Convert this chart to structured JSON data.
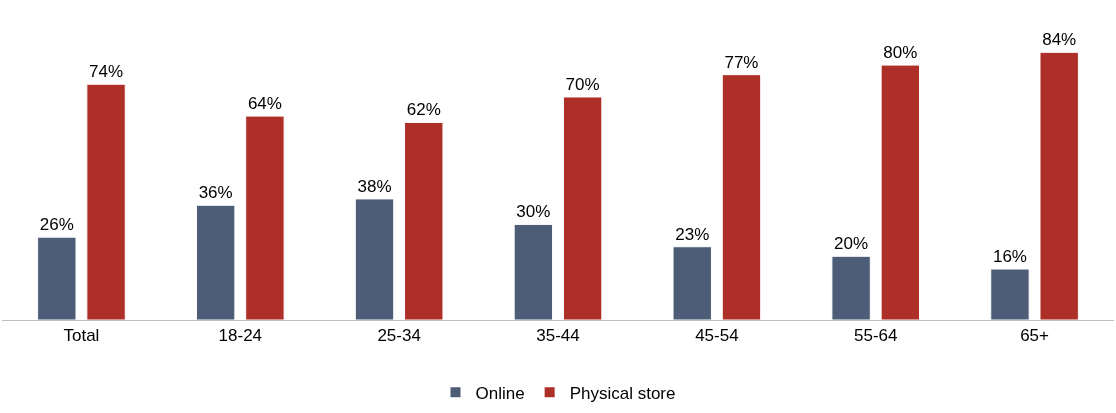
{
  "chart_data": {
    "type": "bar",
    "categories": [
      "Total",
      "18-24",
      "25-34",
      "35-44",
      "45-54",
      "55-64",
      "65+"
    ],
    "series": [
      {
        "name": "Online",
        "color": "#4d5d78",
        "values": [
          26,
          36,
          38,
          30,
          23,
          20,
          16
        ],
        "value_labels": [
          "26%",
          "36%",
          "38%",
          "30%",
          "23%",
          "20%",
          "16%"
        ]
      },
      {
        "name": "Physical store",
        "color": "#ae2f28",
        "values": [
          74,
          64,
          62,
          70,
          77,
          80,
          84
        ],
        "value_labels": [
          "74%",
          "64%",
          "62%",
          "70%",
          "77%",
          "80%",
          "84%"
        ]
      }
    ],
    "relative": false,
    "legend": "bottom"
  }
}
